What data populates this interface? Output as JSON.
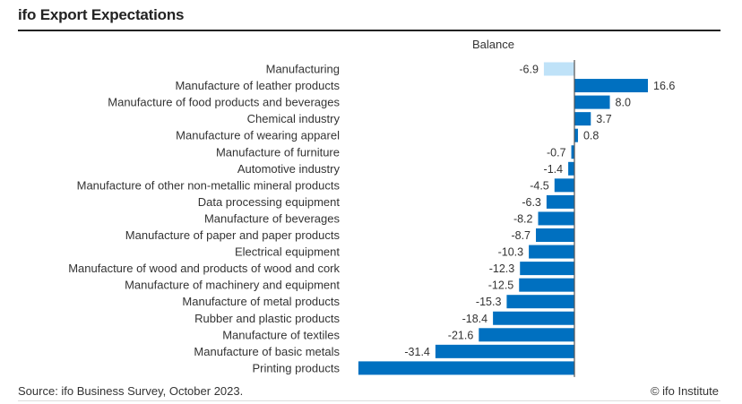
{
  "chart_data": {
    "type": "bar",
    "orientation": "horizontal",
    "title": "ifo Export Expectations",
    "xlabel": "Balance",
    "ylabel": "",
    "grid": false,
    "legend": "none",
    "categories": [
      "Manufacturing",
      "Manufacture of leather products",
      "Manufacture of food products and beverages",
      "Chemical industry",
      "Manufacture of wearing apparel",
      "Manufacture of furniture",
      "Automotive industry",
      "Manufacture of other non-metallic mineral products",
      "Data processing equipment",
      "Manufacture of beverages",
      "Manufacture of paper and paper products",
      "Electrical equipment",
      "Manufacture of wood and products of wood and cork",
      "Manufacture of machinery and equipment",
      "Manufacture of metal products",
      "Rubber and plastic products",
      "Manufacture of textiles",
      "Manufacture of basic metals",
      "Printing products"
    ],
    "values": [
      -6.9,
      16.6,
      8.0,
      3.7,
      0.8,
      -0.7,
      -1.4,
      -4.5,
      -6.3,
      -8.2,
      -8.7,
      -10.3,
      -12.3,
      -12.5,
      -15.3,
      -18.4,
      -21.6,
      -31.4,
      -48.8
    ],
    "labels": [
      "-6.9",
      "16.6",
      "8.0",
      "3.7",
      "0.8",
      "-0.7",
      "-1.4",
      "-4.5",
      "-6.3",
      "-8.2",
      "-8.7",
      "-10.3",
      "-12.3",
      "-12.5",
      "-15.3",
      "-18.4",
      "-21.6",
      "-31.4",
      ""
    ],
    "highlight_index": 0,
    "xlim": [
      -48.8,
      32
    ],
    "colors": {
      "bar": "#0070c0",
      "highlight": "#bfe2f8",
      "axis": "#555555"
    }
  },
  "footer": {
    "source": "Source: ifo Business Survey, October 2023.",
    "copyright": "© ifo Institute"
  }
}
